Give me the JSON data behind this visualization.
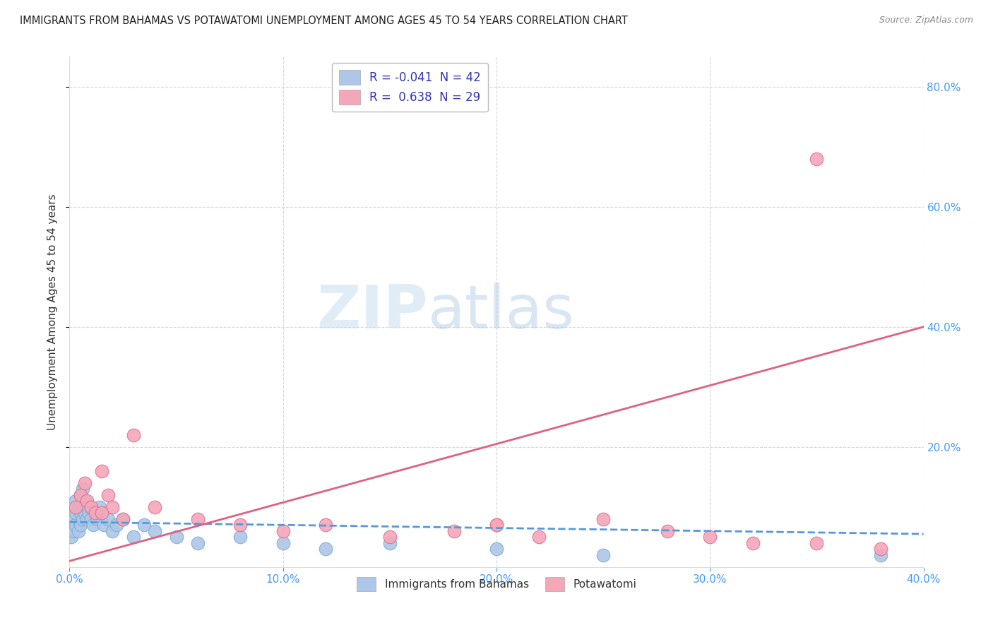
{
  "title": "IMMIGRANTS FROM BAHAMAS VS POTAWATOMI UNEMPLOYMENT AMONG AGES 45 TO 54 YEARS CORRELATION CHART",
  "source": "Source: ZipAtlas.com",
  "ylabel": "Unemployment Among Ages 45 to 54 years",
  "xlim": [
    0.0,
    0.4
  ],
  "ylim": [
    0.0,
    0.85
  ],
  "xticks": [
    0.0,
    0.1,
    0.2,
    0.3,
    0.4
  ],
  "yticks": [
    0.2,
    0.4,
    0.6,
    0.8
  ],
  "xtick_labels": [
    "0.0%",
    "10.0%",
    "20.0%",
    "30.0%",
    "40.0%"
  ],
  "ytick_labels": [
    "20.0%",
    "40.0%",
    "60.0%",
    "80.0%"
  ],
  "legend_entries": [
    {
      "label": "R = -0.041  N = 42",
      "color": "#aec6e8"
    },
    {
      "label": "R =  0.638  N = 29",
      "color": "#f4a7b9"
    }
  ],
  "legend_bottom": [
    {
      "label": "Immigrants from Bahamas",
      "color": "#aec6e8"
    },
    {
      "label": "Potawatomi",
      "color": "#f4a7b9"
    }
  ],
  "bahamas_x": [
    0.001,
    0.002,
    0.002,
    0.003,
    0.003,
    0.003,
    0.004,
    0.004,
    0.005,
    0.005,
    0.005,
    0.006,
    0.006,
    0.007,
    0.007,
    0.008,
    0.008,
    0.009,
    0.01,
    0.01,
    0.011,
    0.012,
    0.013,
    0.014,
    0.015,
    0.016,
    0.018,
    0.02,
    0.022,
    0.025,
    0.03,
    0.035,
    0.04,
    0.05,
    0.06,
    0.08,
    0.1,
    0.12,
    0.15,
    0.2,
    0.25,
    0.38
  ],
  "bahamas_y": [
    0.05,
    0.08,
    0.06,
    0.07,
    0.09,
    0.11,
    0.06,
    0.1,
    0.09,
    0.12,
    0.07,
    0.08,
    0.13,
    0.09,
    0.11,
    0.1,
    0.08,
    0.09,
    0.08,
    0.1,
    0.07,
    0.09,
    0.08,
    0.1,
    0.09,
    0.07,
    0.08,
    0.06,
    0.07,
    0.08,
    0.05,
    0.07,
    0.06,
    0.05,
    0.04,
    0.05,
    0.04,
    0.03,
    0.04,
    0.03,
    0.02,
    0.02
  ],
  "potawatomi_x": [
    0.003,
    0.005,
    0.007,
    0.008,
    0.01,
    0.012,
    0.015,
    0.018,
    0.02,
    0.025,
    0.03,
    0.04,
    0.06,
    0.08,
    0.1,
    0.12,
    0.15,
    0.18,
    0.2,
    0.22,
    0.25,
    0.28,
    0.3,
    0.32,
    0.35,
    0.38,
    0.015,
    0.2,
    0.35
  ],
  "potawatomi_y": [
    0.1,
    0.12,
    0.14,
    0.11,
    0.1,
    0.09,
    0.16,
    0.12,
    0.1,
    0.08,
    0.22,
    0.1,
    0.08,
    0.07,
    0.06,
    0.07,
    0.05,
    0.06,
    0.07,
    0.05,
    0.08,
    0.06,
    0.05,
    0.04,
    0.04,
    0.03,
    0.09,
    0.07,
    0.68
  ],
  "bahamas_color": "#aec6e8",
  "bahamas_edge_color": "#7aafd4",
  "potawatomi_color": "#f4a7b9",
  "potawatomi_edge_color": "#e07090",
  "trend_bahamas_color": "#5599dd",
  "trend_potawatomi_color": "#e06080",
  "background_color": "#ffffff",
  "grid_color": "#cccccc",
  "tick_color": "#4499ff",
  "bahamas_trend_start_y": 0.075,
  "bahamas_trend_end_y": 0.055,
  "potawatomi_trend_start_y": 0.01,
  "potawatomi_trend_end_y": 0.4
}
